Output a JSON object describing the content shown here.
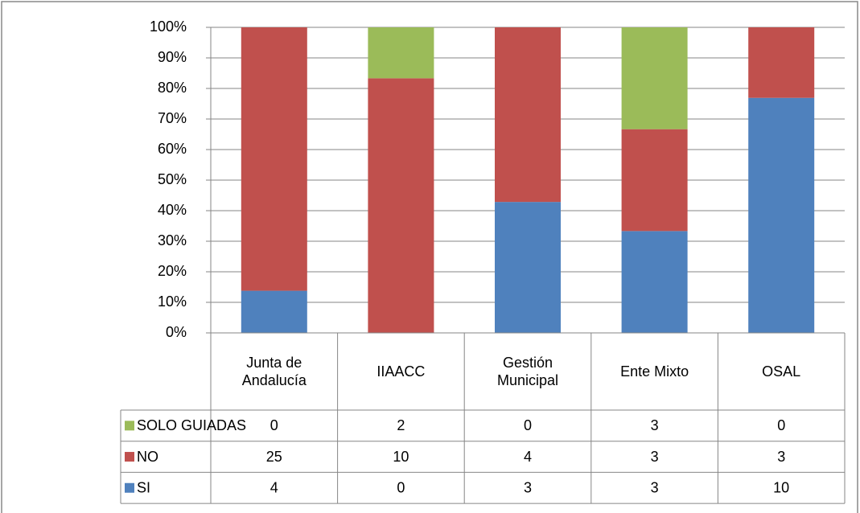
{
  "chart_data": {
    "type": "bar",
    "stacked": "percent",
    "categories": [
      "Junta de Andalucía",
      "IIAACC",
      "Gestión Municipal",
      "Ente Mixto",
      "OSAL"
    ],
    "series": [
      {
        "name": "SI",
        "color": "#4f81bd",
        "values": [
          4,
          0,
          3,
          3,
          10
        ]
      },
      {
        "name": "NO",
        "color": "#c0504d",
        "values": [
          25,
          10,
          4,
          3,
          3
        ]
      },
      {
        "name": "SOLO GUIADAS",
        "color": "#9bbb59",
        "values": [
          0,
          2,
          0,
          3,
          0
        ]
      }
    ],
    "ylim": [
      0,
      100
    ],
    "yticks": [
      {
        "value": 0,
        "label": "0%"
      },
      {
        "value": 10,
        "label": "10%"
      },
      {
        "value": 20,
        "label": "20%"
      },
      {
        "value": 30,
        "label": "30%"
      },
      {
        "value": 40,
        "label": "40%"
      },
      {
        "value": 50,
        "label": "50%"
      },
      {
        "value": 60,
        "label": "60%"
      },
      {
        "value": 70,
        "label": "70%"
      },
      {
        "value": 80,
        "label": "80%"
      },
      {
        "value": 90,
        "label": "90%"
      },
      {
        "value": 100,
        "label": "100%"
      }
    ],
    "grid": true,
    "data_table": true
  }
}
